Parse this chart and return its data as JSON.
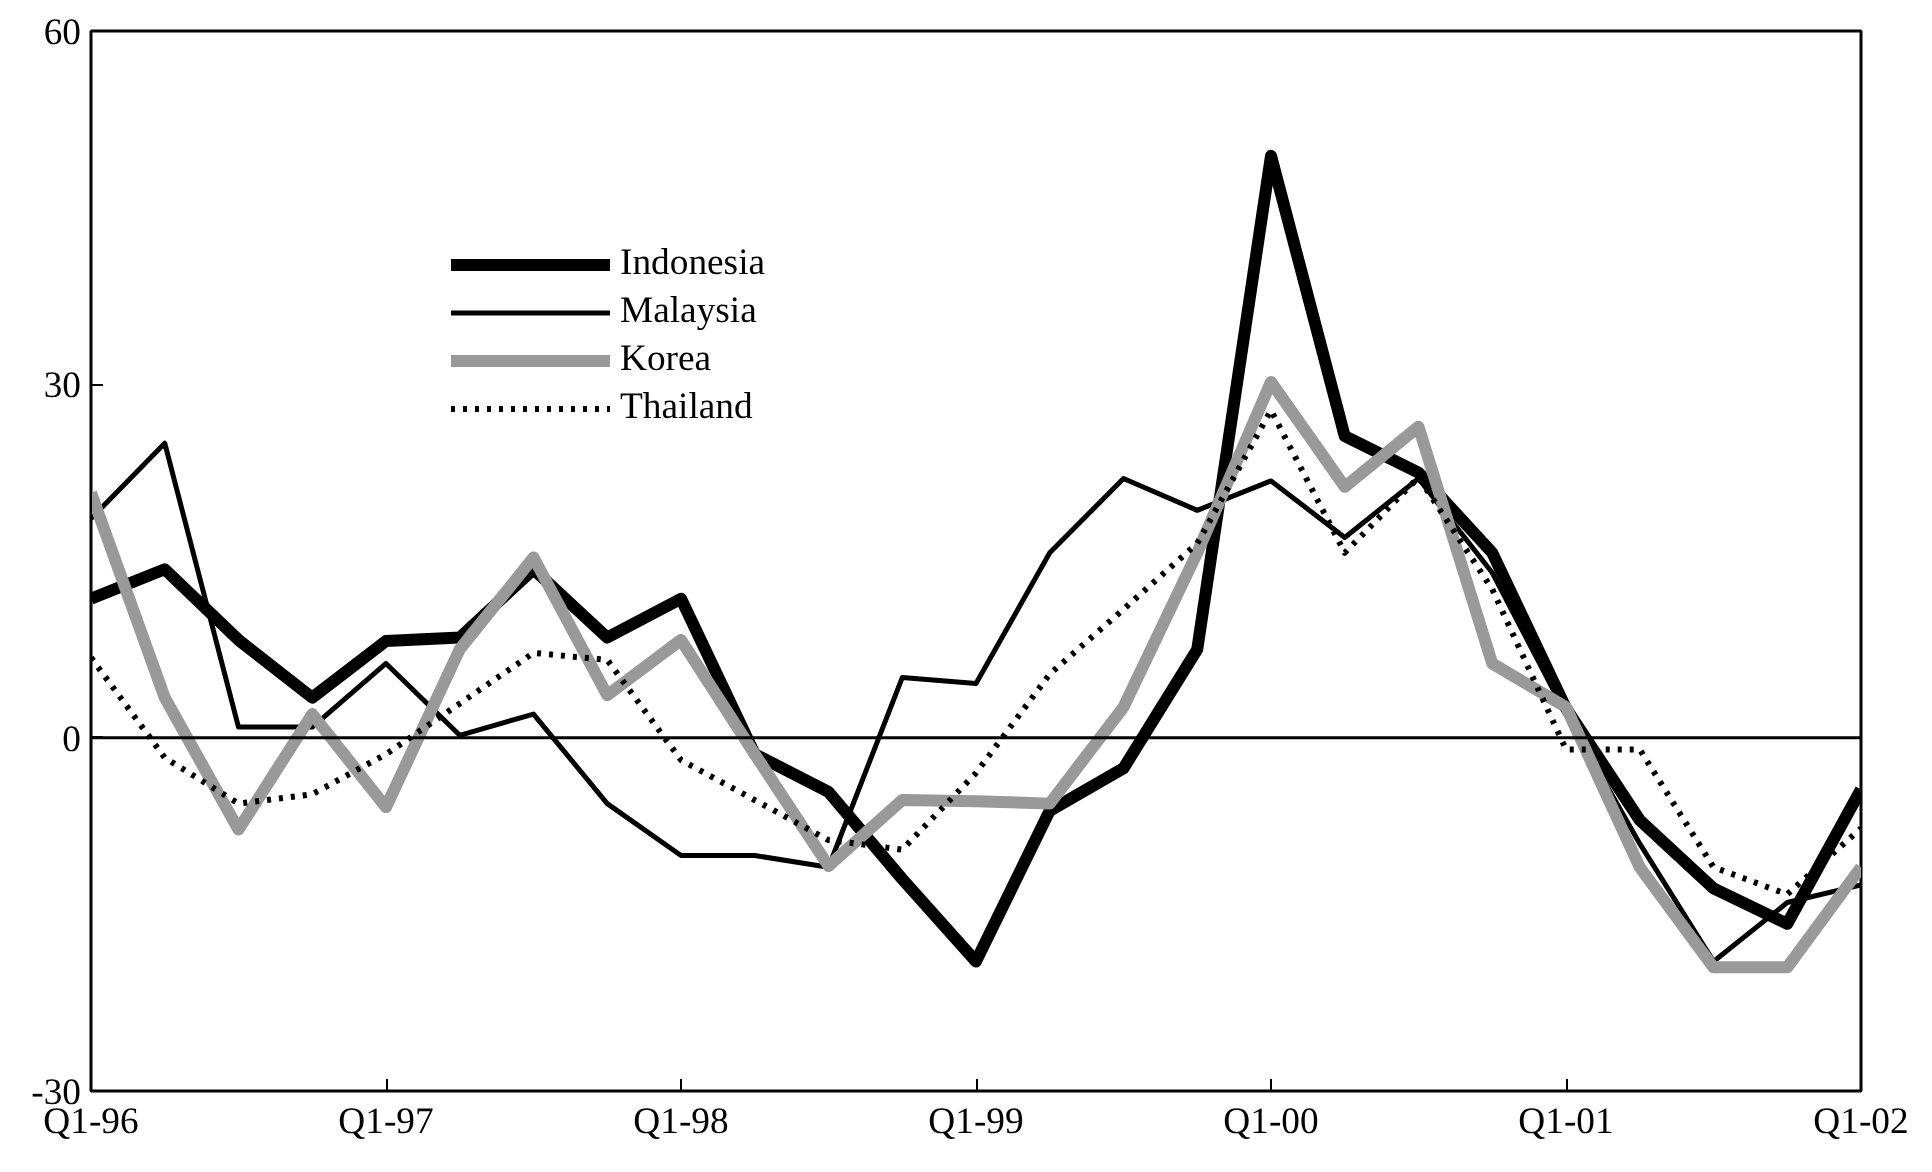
{
  "chart_data": {
    "type": "line",
    "categories": [
      "Q1-96",
      null,
      null,
      null,
      "Q1-97",
      null,
      null,
      null,
      "Q1-98",
      null,
      null,
      null,
      "Q1-99",
      null,
      null,
      null,
      "Q1-00",
      null,
      null,
      null,
      "Q1-01",
      null,
      null,
      null,
      "Q1-02"
    ],
    "ylim": [
      -30,
      60
    ],
    "yticks": [
      -30,
      0,
      30,
      60
    ],
    "grid": false,
    "legend": "top left",
    "ref_lines": [
      {
        "axis": "y",
        "value": 0,
        "label": null
      }
    ],
    "series": [
      {
        "name": "Indonesia",
        "color": "#000000",
        "values": [
          11.8,
          14.3,
          8.3,
          3.4,
          8.2,
          8.5,
          14.3,
          8.5,
          11.8,
          -1.4,
          -4.6,
          -12,
          -19,
          -6.2,
          -2.6,
          7.5,
          49.4,
          25.6,
          22.5,
          15.7,
          2.5,
          -7,
          -12.8,
          -15.8,
          -4.4
        ]
      },
      {
        "name": "Malaysia",
        "color": "#000000",
        "values": [
          18.6,
          25,
          0.9,
          0.9,
          6.3,
          0.2,
          2,
          -5.6,
          -10,
          -10,
          -11,
          5.1,
          4.6,
          15.7,
          22,
          19.3,
          21.8,
          17,
          22,
          14,
          2,
          -9,
          -19,
          -14,
          -12.5
        ]
      },
      {
        "name": "Korea",
        "color": "#999999",
        "values": [
          20.8,
          3.4,
          -7.8,
          2,
          -5.9,
          7.5,
          15.3,
          3.6,
          8.3,
          -1.4,
          -10.9,
          -5.3,
          -5.4,
          -5.6,
          2.6,
          15.7,
          30.2,
          21.3,
          26.4,
          6.3,
          2.6,
          -11,
          -19.5,
          -19.5,
          -11
        ]
      },
      {
        "name": "Thailand",
        "color": "#000000",
        "line_style": "dotted",
        "values": [
          6.8,
          -1.7,
          -5.6,
          -4.8,
          -1.4,
          2.9,
          7.2,
          6.6,
          -1.9,
          -5.3,
          -8.7,
          -9.5,
          -3,
          5.4,
          10.9,
          16.5,
          27.8,
          15.7,
          22.1,
          12.6,
          -1,
          -1,
          -11,
          -13.3,
          -7.7
        ]
      }
    ]
  }
}
